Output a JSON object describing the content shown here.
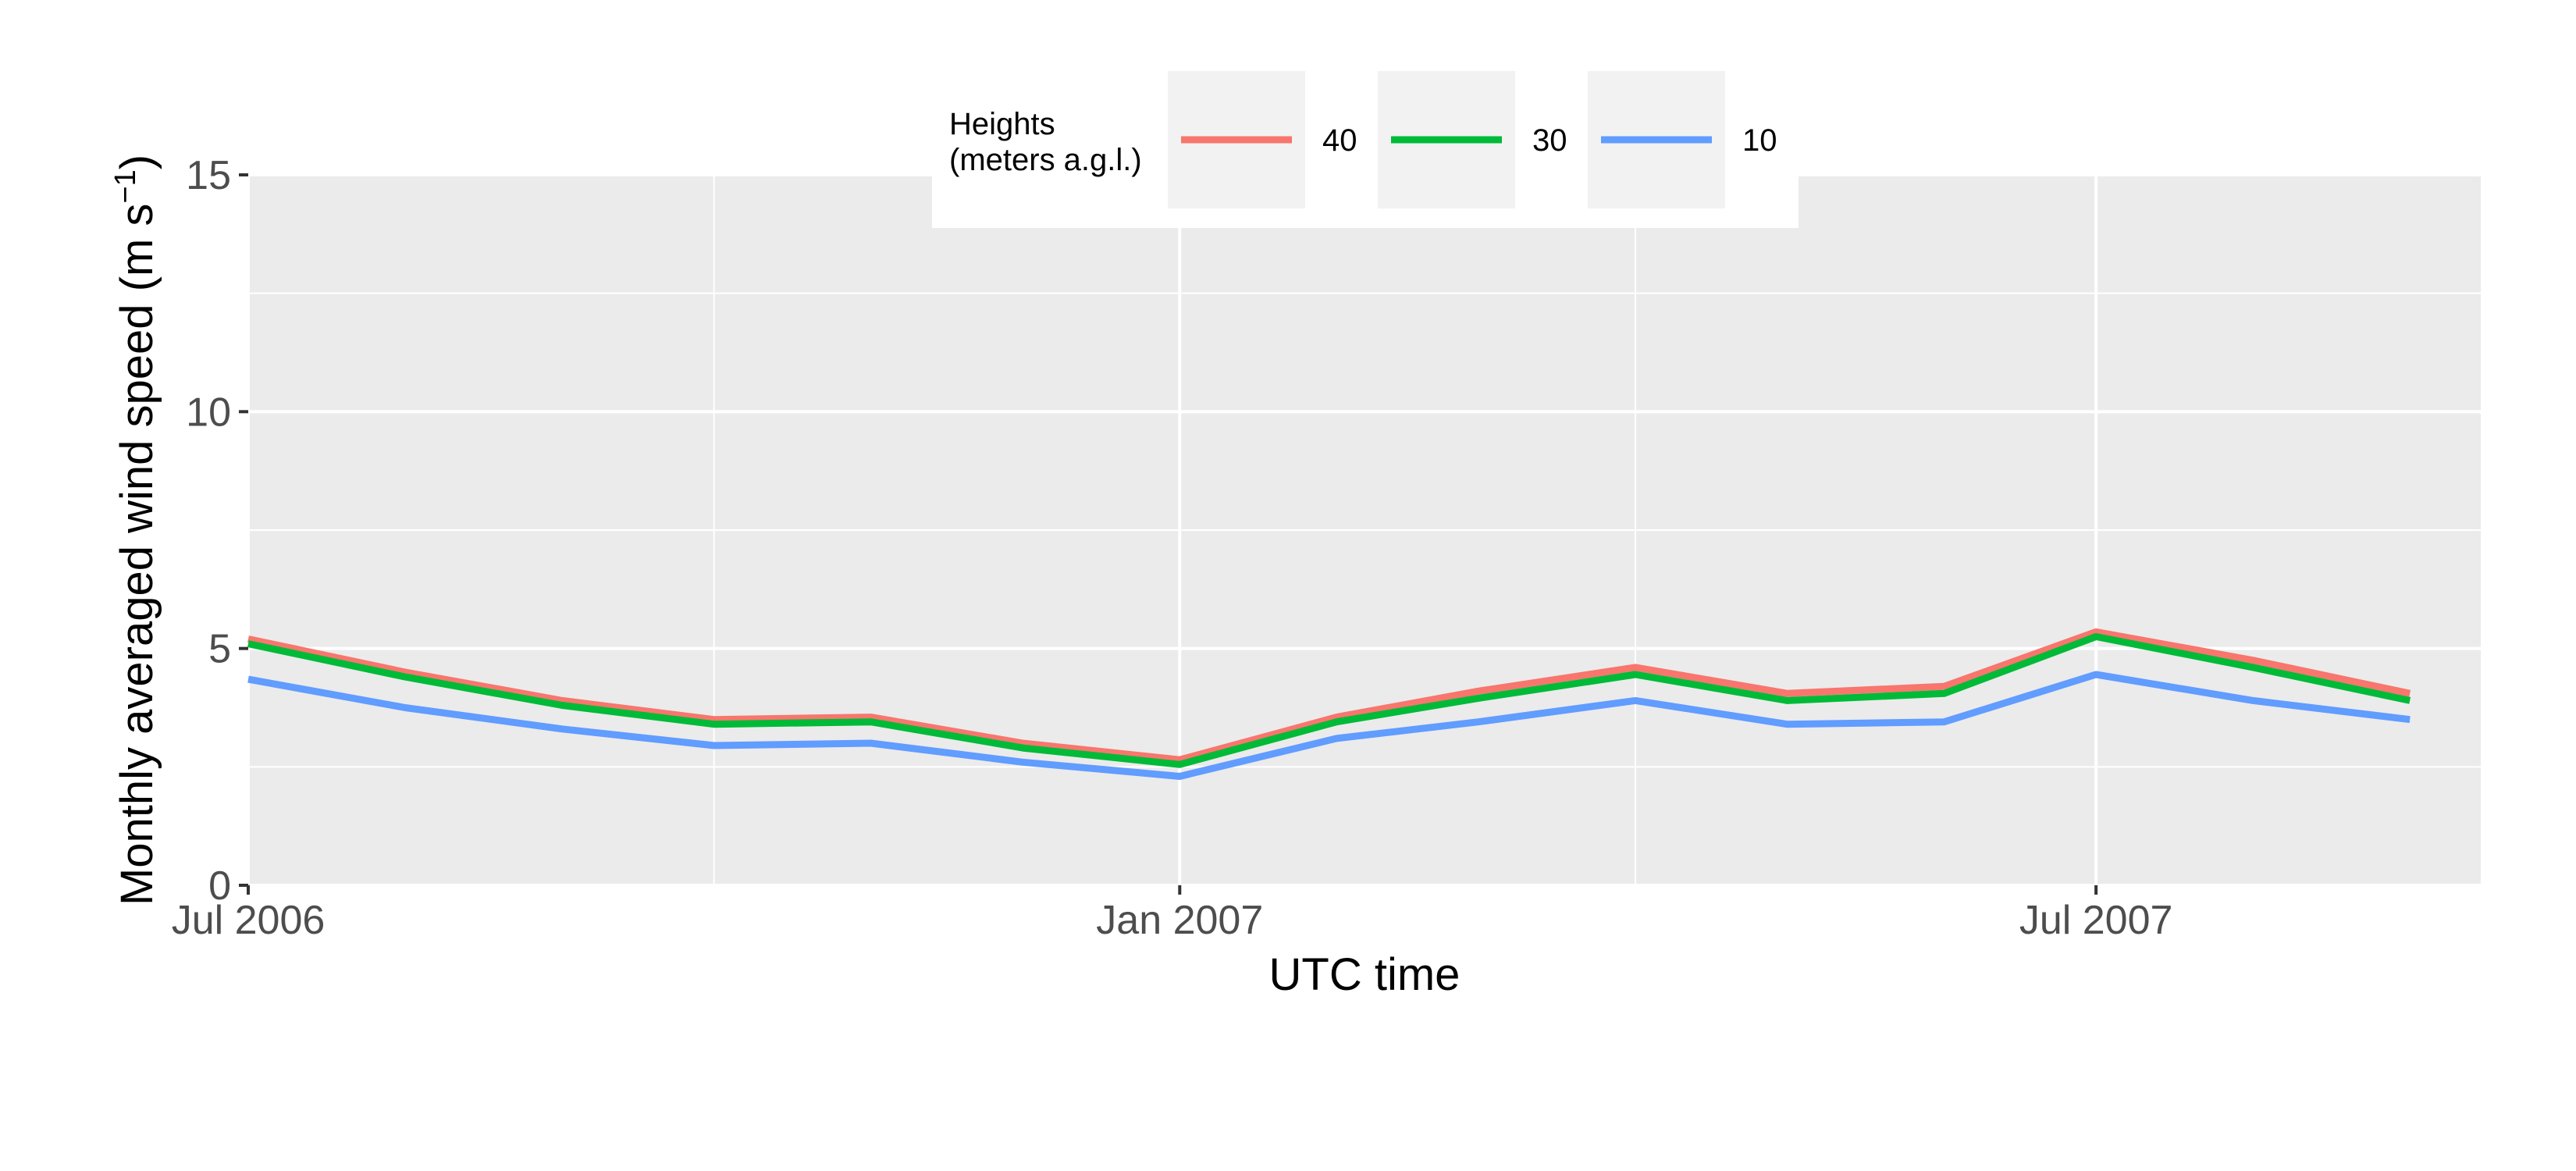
{
  "chart_data": {
    "type": "line",
    "xlabel": "UTC time",
    "ylabel": "Monthly averaged wind speed (m s",
    "ylabel_sup": "−1",
    "ylabel_close": ")",
    "x": [
      "2006-07-01",
      "2006-08-01",
      "2006-09-01",
      "2006-10-01",
      "2006-11-01",
      "2006-12-01",
      "2007-01-01",
      "2007-02-01",
      "2007-03-01",
      "2007-04-01",
      "2007-05-01",
      "2007-06-01",
      "2007-07-01",
      "2007-08-01",
      "2007-09-01"
    ],
    "x_ticks": [
      {
        "date": "2006-07-01",
        "label": "Jul 2006"
      },
      {
        "date": "2007-01-01",
        "label": "Jan 2007"
      },
      {
        "date": "2007-07-01",
        "label": "Jul 2007"
      }
    ],
    "x_minor_ticks": [
      "2006-10-01",
      "2007-04-01"
    ],
    "xlim": [
      "2006-07-01",
      "2007-09-15"
    ],
    "y_ticks": [
      0,
      5,
      10,
      15
    ],
    "ylim": [
      0,
      15
    ],
    "grid": true,
    "legend": {
      "title_line1": "Heights",
      "title_line2": "(meters a.g.l.)",
      "placement": "top"
    },
    "series": [
      {
        "name": "40",
        "color": "#F8766D",
        "values": [
          5.2,
          4.5,
          3.9,
          3.5,
          3.55,
          3.0,
          2.65,
          3.55,
          4.1,
          4.6,
          4.05,
          4.2,
          5.35,
          4.75,
          4.05
        ]
      },
      {
        "name": "30",
        "color": "#00BA38",
        "values": [
          5.1,
          4.4,
          3.8,
          3.4,
          3.45,
          2.9,
          2.55,
          3.45,
          3.95,
          4.45,
          3.9,
          4.05,
          5.25,
          4.6,
          3.9
        ]
      },
      {
        "name": "10",
        "color": "#619CFF",
        "values": [
          4.35,
          3.75,
          3.3,
          2.95,
          3.0,
          2.6,
          2.3,
          3.1,
          3.45,
          3.9,
          3.4,
          3.45,
          4.45,
          3.9,
          3.5
        ]
      }
    ]
  }
}
